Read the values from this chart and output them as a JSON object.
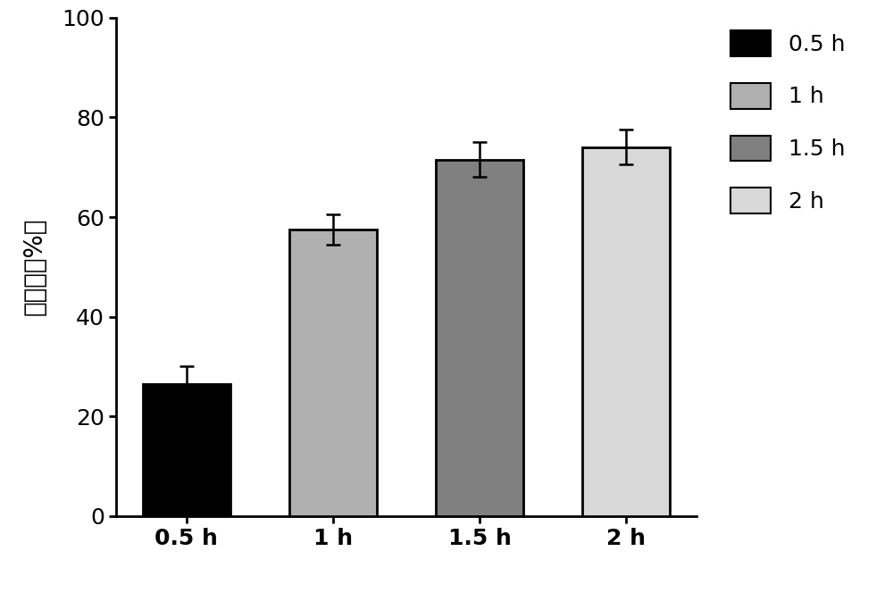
{
  "categories": [
    "0.5 h",
    "1 h",
    "1.5 h",
    "2 h"
  ],
  "values": [
    26.5,
    57.5,
    71.5,
    74.0
  ],
  "errors": [
    3.5,
    3.0,
    3.5,
    3.5
  ],
  "bar_colors": [
    "#000000",
    "#b0b0b0",
    "#808080",
    "#d8d8d8"
  ],
  "bar_edgecolors": [
    "#000000",
    "#000000",
    "#000000",
    "#000000"
  ],
  "bar_edge_linewidth": 2.0,
  "ylabel": "消化率（%）",
  "ylim": [
    0,
    100
  ],
  "yticks": [
    0,
    20,
    40,
    60,
    80,
    100
  ],
  "legend_labels": [
    "0.5 h",
    "1 h",
    "1.5 h",
    "2 h"
  ],
  "legend_colors": [
    "#000000",
    "#b0b0b0",
    "#808080",
    "#d8d8d8"
  ],
  "background_color": "#ffffff",
  "bar_width": 0.6,
  "ylabel_fontsize": 20,
  "tick_fontsize": 18,
  "legend_fontsize": 18,
  "error_capsize": 6,
  "error_color": "#000000",
  "spine_linewidth": 2.0
}
